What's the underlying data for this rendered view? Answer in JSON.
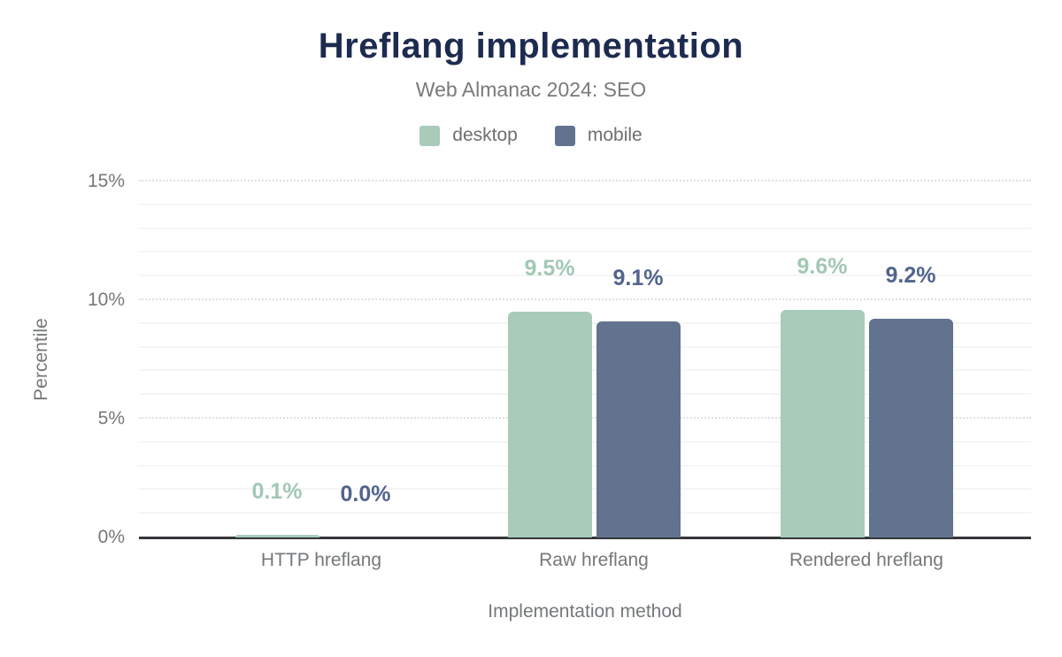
{
  "header": {
    "title": "Hreflang implementation",
    "subtitle": "Web Almanac 2024: SEO"
  },
  "legend": {
    "items": [
      {
        "label": "desktop",
        "color": "#a8cbba"
      },
      {
        "label": "mobile",
        "color": "#61738e"
      }
    ]
  },
  "chart_data": {
    "type": "bar",
    "title": "Hreflang implementation",
    "subtitle": "Web Almanac 2024: SEO",
    "categories": [
      "HTTP hreflang",
      "Raw hreflang",
      "Rendered hreflang"
    ],
    "series": [
      {
        "name": "desktop",
        "color": "#a8cbba",
        "label_color": "#a2c8b4",
        "values": [
          0.1,
          9.5,
          9.6
        ]
      },
      {
        "name": "mobile",
        "color": "#61738e",
        "label_color": "#51648c",
        "values": [
          0.0,
          9.1,
          9.2
        ]
      }
    ],
    "value_label_suffix": "%",
    "xlabel": "Implementation method",
    "ylabel": "Percentile",
    "ylim": [
      0,
      15
    ],
    "yticks": [
      0,
      5,
      10,
      15
    ],
    "ytick_labels": [
      "0%",
      "5%",
      "10%",
      "15%"
    ],
    "minor_grid_step": 1,
    "major_grid_step": 5,
    "grid": true,
    "legend_position": "top",
    "colors": {
      "title": "#1e2b50",
      "muted_text": "#75787b",
      "axis_line": "#35363a",
      "minor_grid": "#f5f5f5",
      "major_grid": "#e0e0e0"
    }
  }
}
